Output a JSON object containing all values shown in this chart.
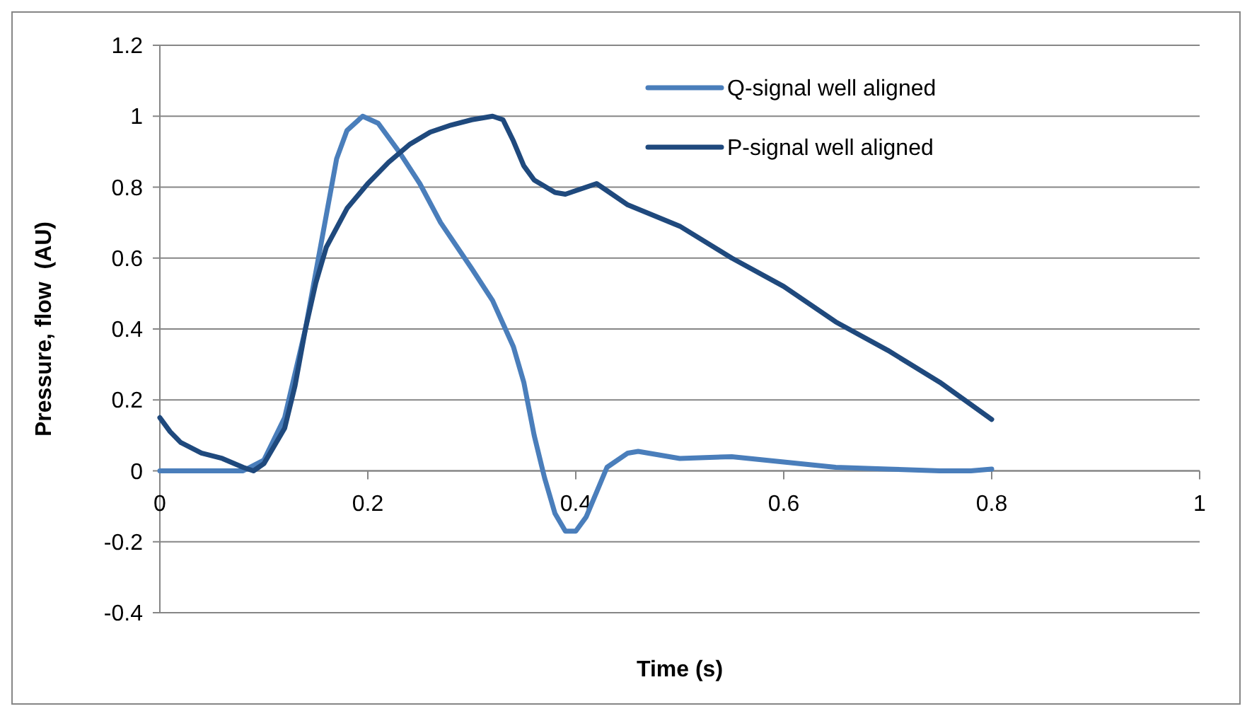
{
  "chart_data": {
    "type": "line",
    "xlabel": "Time (s)",
    "ylabel": "Pressure, flow  (AU)",
    "xlim": [
      0,
      1
    ],
    "xticks": [
      0,
      0.2,
      0.4,
      0.6,
      0.8,
      1
    ],
    "ylim": [
      -0.4,
      1.2
    ],
    "yticks": [
      -0.4,
      -0.2,
      0,
      0.2,
      0.4,
      0.6,
      0.8,
      1,
      1.2
    ],
    "grid": "y",
    "legend": "top right",
    "marker": "none",
    "line_style": "solid",
    "series": [
      {
        "name": "Q-signal well aligned",
        "color": "#4a7ebb",
        "x": [
          0,
          0.08,
          0.1,
          0.12,
          0.14,
          0.16,
          0.17,
          0.18,
          0.195,
          0.21,
          0.23,
          0.25,
          0.27,
          0.3,
          0.32,
          0.34,
          0.35,
          0.36,
          0.37,
          0.38,
          0.39,
          0.4,
          0.41,
          0.42,
          0.43,
          0.45,
          0.46,
          0.5,
          0.55,
          0.6,
          0.65,
          0.7,
          0.75,
          0.78,
          0.8
        ],
        "values": [
          0,
          0,
          0.03,
          0.15,
          0.4,
          0.72,
          0.88,
          0.96,
          1,
          0.98,
          0.9,
          0.81,
          0.7,
          0.57,
          0.48,
          0.35,
          0.25,
          0.1,
          -0.02,
          -0.12,
          -0.17,
          -0.17,
          -0.13,
          -0.06,
          0.01,
          0.05,
          0.055,
          0.035,
          0.04,
          0.025,
          0.01,
          0.005,
          0,
          0,
          0.005
        ]
      },
      {
        "name": "P-signal well aligned",
        "color": "#1f497d",
        "x": [
          0,
          0.01,
          0.02,
          0.04,
          0.06,
          0.08,
          0.09,
          0.1,
          0.12,
          0.13,
          0.14,
          0.15,
          0.16,
          0.18,
          0.2,
          0.22,
          0.24,
          0.26,
          0.28,
          0.3,
          0.32,
          0.33,
          0.34,
          0.35,
          0.36,
          0.38,
          0.39,
          0.41,
          0.42,
          0.43,
          0.45,
          0.5,
          0.55,
          0.6,
          0.65,
          0.7,
          0.75,
          0.8
        ],
        "values": [
          0.15,
          0.11,
          0.08,
          0.05,
          0.035,
          0.01,
          0,
          0.02,
          0.12,
          0.24,
          0.4,
          0.53,
          0.63,
          0.74,
          0.81,
          0.87,
          0.92,
          0.955,
          0.975,
          0.99,
          1,
          0.99,
          0.93,
          0.86,
          0.82,
          0.785,
          0.78,
          0.8,
          0.81,
          0.79,
          0.75,
          0.69,
          0.6,
          0.52,
          0.42,
          0.34,
          0.25,
          0.145
        ]
      }
    ]
  }
}
